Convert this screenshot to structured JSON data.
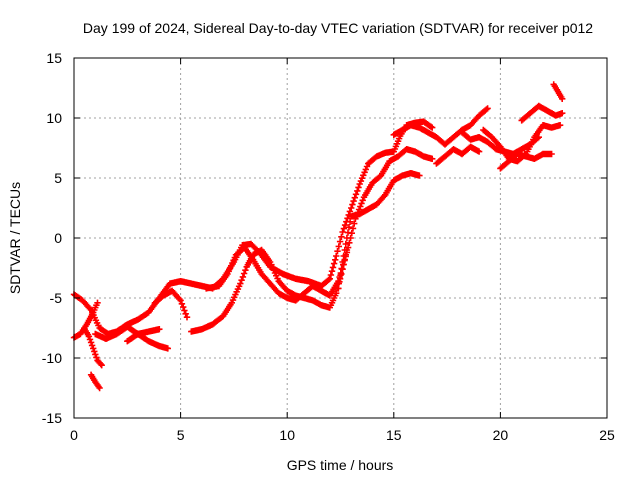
{
  "chart_data": {
    "type": "scatter",
    "title": "Day 199 of 2024, Sidereal Day-to-day VTEC variation (SDTVAR) for receiver p012",
    "xlabel": "GPS time / hours",
    "ylabel": "SDTVAR / TECUs",
    "xlim": [
      0,
      25
    ],
    "ylim": [
      -15,
      15
    ],
    "xticks": [
      0,
      5,
      10,
      15,
      20,
      25
    ],
    "yticks": [
      -15,
      -10,
      -5,
      0,
      5,
      10,
      15
    ],
    "grid": true,
    "marker": "+",
    "series": [
      {
        "color": "#ff0000",
        "tracks": [
          [
            [
              0.0,
              -4.7
            ],
            [
              0.4,
              -5.2
            ],
            [
              0.8,
              -6.0
            ],
            [
              1.2,
              -7.5
            ],
            [
              1.6,
              -8.0
            ],
            [
              2.0,
              -7.8
            ],
            [
              2.5,
              -7.2
            ],
            [
              3.0,
              -6.8
            ],
            [
              3.5,
              -6.2
            ],
            [
              4.0,
              -5.0
            ],
            [
              4.5,
              -3.8
            ],
            [
              5.0,
              -3.6
            ],
            [
              5.5,
              -3.8
            ],
            [
              6.0,
              -4.0
            ],
            [
              6.5,
              -4.2
            ],
            [
              7.0,
              -3.4
            ],
            [
              7.5,
              -2.0
            ],
            [
              7.9,
              -0.6
            ],
            [
              8.3,
              -0.5
            ],
            [
              8.7,
              -1.2
            ],
            [
              9.2,
              -2.4
            ],
            [
              9.8,
              -3.0
            ],
            [
              10.4,
              -3.4
            ],
            [
              11.0,
              -3.6
            ],
            [
              11.6,
              -4.0
            ],
            [
              12.0,
              -3.4
            ],
            [
              12.3,
              -1.5
            ],
            [
              12.6,
              0.5
            ],
            [
              13.0,
              2.5
            ],
            [
              13.4,
              4.5
            ],
            [
              13.8,
              6.2
            ],
            [
              14.2,
              6.8
            ],
            [
              14.6,
              7.1
            ],
            [
              15.0,
              7.2
            ],
            [
              15.3,
              8.5
            ],
            [
              15.6,
              9.4
            ],
            [
              16.0,
              9.6
            ],
            [
              16.4,
              9.7
            ],
            [
              16.8,
              9.2
            ]
          ],
          [
            [
              0.0,
              -8.3
            ],
            [
              0.3,
              -8.0
            ],
            [
              0.6,
              -7.2
            ],
            [
              0.9,
              -6.2
            ],
            [
              1.1,
              -5.4
            ]
          ],
          [
            [
              0.5,
              -7.6
            ],
            [
              0.7,
              -8.2
            ],
            [
              0.9,
              -9.2
            ],
            [
              1.1,
              -10.2
            ],
            [
              1.3,
              -10.6
            ]
          ],
          [
            [
              0.8,
              -11.4
            ],
            [
              1.0,
              -12.0
            ],
            [
              1.2,
              -12.5
            ]
          ],
          [
            [
              1.0,
              -8.0
            ],
            [
              1.5,
              -8.4
            ],
            [
              2.0,
              -8.0
            ],
            [
              2.5,
              -7.4
            ],
            [
              3.0,
              -8.0
            ],
            [
              3.5,
              -8.6
            ],
            [
              4.0,
              -9.0
            ],
            [
              4.4,
              -9.2
            ]
          ],
          [
            [
              2.5,
              -8.6
            ],
            [
              3.0,
              -8.0
            ],
            [
              3.5,
              -7.8
            ],
            [
              4.0,
              -7.6
            ]
          ],
          [
            [
              3.8,
              -5.4
            ],
            [
              4.2,
              -4.8
            ],
            [
              4.6,
              -4.4
            ],
            [
              5.0,
              -5.2
            ],
            [
              5.3,
              -6.6
            ]
          ],
          [
            [
              5.5,
              -7.8
            ],
            [
              6.0,
              -7.6
            ],
            [
              6.5,
              -7.2
            ],
            [
              7.0,
              -6.5
            ],
            [
              7.4,
              -5.4
            ],
            [
              7.8,
              -3.8
            ],
            [
              8.1,
              -2.4
            ],
            [
              8.4,
              -1.4
            ],
            [
              8.8,
              -1.0
            ],
            [
              9.2,
              -2.0
            ],
            [
              9.6,
              -3.6
            ],
            [
              10.0,
              -4.4
            ],
            [
              10.4,
              -4.8
            ],
            [
              10.8,
              -5.0
            ],
            [
              11.2,
              -5.2
            ],
            [
              11.6,
              -5.6
            ],
            [
              12.0,
              -5.8
            ],
            [
              12.3,
              -4.6
            ],
            [
              12.6,
              -2.6
            ],
            [
              12.8,
              -1.0
            ]
          ],
          [
            [
              6.2,
              -4.2
            ],
            [
              6.8,
              -4.0
            ],
            [
              7.2,
              -3.0
            ],
            [
              7.6,
              -1.4
            ],
            [
              8.0,
              -0.8
            ],
            [
              8.4,
              -1.8
            ],
            [
              8.8,
              -3.0
            ],
            [
              9.2,
              -3.8
            ],
            [
              9.6,
              -4.6
            ],
            [
              10.0,
              -5.0
            ],
            [
              10.4,
              -5.2
            ],
            [
              10.8,
              -4.6
            ],
            [
              11.2,
              -4.0
            ],
            [
              11.6,
              -4.4
            ],
            [
              12.0,
              -4.8
            ],
            [
              12.4,
              -3.6
            ],
            [
              12.8,
              -1.2
            ],
            [
              13.2,
              1.6
            ],
            [
              13.6,
              3.4
            ],
            [
              14.0,
              4.6
            ],
            [
              14.4,
              5.2
            ],
            [
              14.8,
              6.4
            ],
            [
              15.2,
              6.8
            ],
            [
              15.6,
              7.4
            ],
            [
              16.0,
              7.2
            ],
            [
              16.4,
              6.8
            ],
            [
              16.8,
              6.6
            ]
          ],
          [
            [
              12.4,
              -4.2
            ],
            [
              12.6,
              -2.0
            ],
            [
              12.8,
              0.0
            ],
            [
              13.0,
              1.8
            ],
            [
              13.4,
              2.0
            ],
            [
              13.8,
              2.4
            ],
            [
              14.2,
              2.8
            ],
            [
              14.6,
              3.6
            ],
            [
              15.0,
              4.8
            ],
            [
              15.4,
              5.2
            ],
            [
              15.8,
              5.4
            ],
            [
              16.2,
              5.2
            ]
          ],
          [
            [
              15.0,
              8.6
            ],
            [
              15.4,
              9.0
            ],
            [
              15.8,
              9.4
            ],
            [
              16.2,
              9.2
            ],
            [
              16.6,
              8.8
            ],
            [
              17.0,
              8.4
            ],
            [
              17.4,
              7.8
            ],
            [
              17.8,
              8.4
            ],
            [
              18.2,
              9.0
            ],
            [
              18.6,
              9.4
            ],
            [
              19.0,
              10.2
            ],
            [
              19.4,
              10.8
            ]
          ],
          [
            [
              17.0,
              6.2
            ],
            [
              17.4,
              6.8
            ],
            [
              17.8,
              7.4
            ],
            [
              18.2,
              7.0
            ],
            [
              18.6,
              7.6
            ],
            [
              19.0,
              7.2
            ]
          ],
          [
            [
              18.2,
              8.8
            ],
            [
              18.6,
              8.2
            ],
            [
              19.0,
              8.4
            ],
            [
              19.4,
              8.0
            ],
            [
              19.8,
              7.4
            ],
            [
              20.2,
              7.2
            ],
            [
              20.6,
              7.0
            ],
            [
              21.0,
              7.4
            ],
            [
              21.4,
              7.8
            ],
            [
              21.8,
              8.4
            ]
          ],
          [
            [
              19.2,
              9.0
            ],
            [
              19.6,
              8.4
            ],
            [
              20.0,
              7.6
            ],
            [
              20.4,
              6.6
            ],
            [
              20.8,
              6.4
            ],
            [
              21.2,
              7.0
            ],
            [
              21.6,
              8.4
            ],
            [
              22.0,
              9.4
            ],
            [
              22.4,
              9.2
            ],
            [
              22.8,
              9.4
            ]
          ],
          [
            [
              20.0,
              5.8
            ],
            [
              20.4,
              6.4
            ],
            [
              20.8,
              7.0
            ],
            [
              21.2,
              6.8
            ],
            [
              21.6,
              6.6
            ],
            [
              22.0,
              7.0
            ],
            [
              22.4,
              7.0
            ]
          ],
          [
            [
              21.0,
              9.8
            ],
            [
              21.4,
              10.4
            ],
            [
              21.8,
              11.0
            ],
            [
              22.2,
              10.6
            ],
            [
              22.6,
              10.2
            ],
            [
              22.9,
              10.4
            ]
          ],
          [
            [
              22.5,
              12.8
            ],
            [
              22.7,
              12.2
            ],
            [
              22.9,
              11.6
            ]
          ]
        ]
      }
    ]
  }
}
